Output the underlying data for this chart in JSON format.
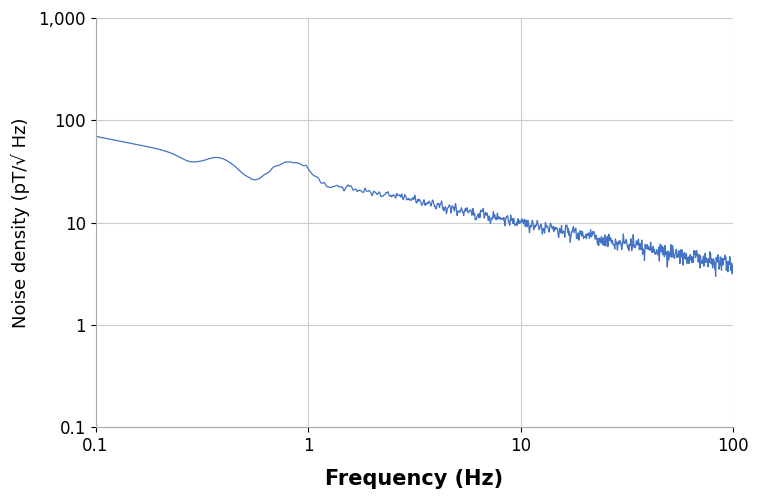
{
  "title": "",
  "xlabel": "Frequency (Hz)",
  "ylabel": "Noise density (pT/√ Hz)",
  "xlim": [
    0.1,
    100
  ],
  "ylim": [
    0.1,
    1000
  ],
  "line_color": "#4472c4",
  "line_width": 0.9,
  "background_color": "#ffffff",
  "grid_color": "#cccccc",
  "xlabel_fontsize": 15,
  "ylabel_fontsize": 13,
  "tick_fontsize": 12,
  "curve_start_val": 70.0,
  "curve_end_val": 3.0,
  "power_law_alpha": 0.42,
  "bump_positions": [
    0.28,
    0.38,
    0.55,
    0.75,
    0.95,
    1.15
  ],
  "bump_heights": [
    -6,
    4,
    -8,
    5,
    10,
    -5
  ],
  "bump_widths": [
    0.06,
    0.05,
    0.06,
    0.06,
    0.07,
    0.06
  ]
}
